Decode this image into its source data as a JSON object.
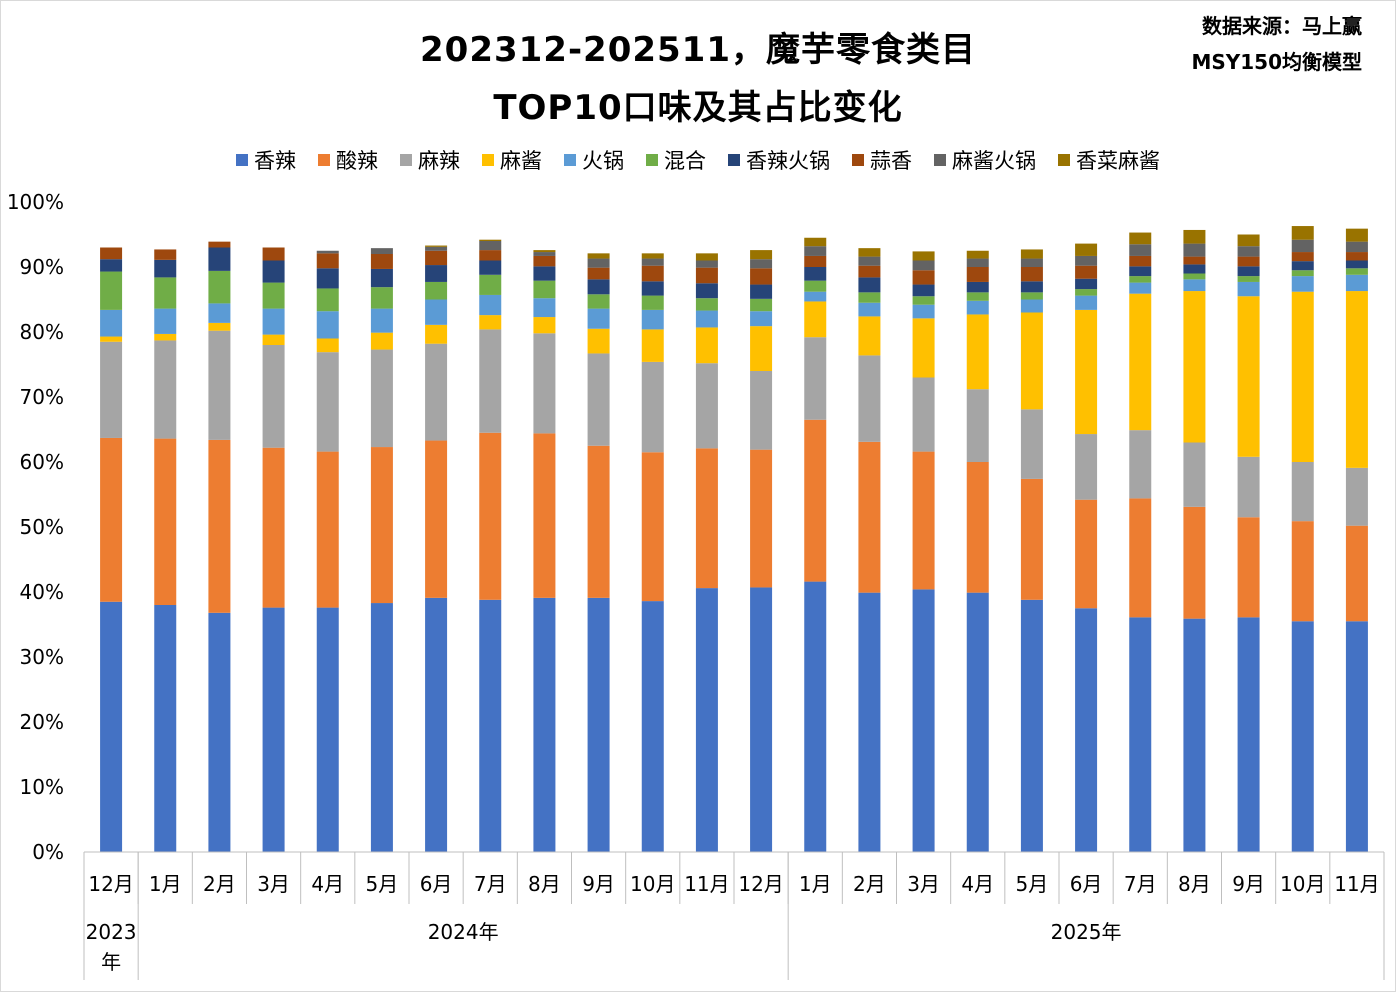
{
  "title_line1": "202312-202511，魔芋零食类目",
  "title_line2": "TOP10口味及其占比变化",
  "source_line1": "数据来源：马上赢",
  "source_line2": "MSY150均衡模型",
  "chart_data": {
    "type": "bar",
    "stacked": true,
    "title": "202312-202511，魔芋零食类目 TOP10口味及其占比变化",
    "ylim": [
      0,
      1
    ],
    "ytick_labels": [
      "0%",
      "10%",
      "20%",
      "30%",
      "40%",
      "50%",
      "60%",
      "70%",
      "80%",
      "90%",
      "100%"
    ],
    "categories": [
      "12月",
      "1月",
      "2月",
      "3月",
      "4月",
      "5月",
      "6月",
      "7月",
      "8月",
      "9月",
      "10月",
      "11月",
      "12月",
      "1月",
      "2月",
      "3月",
      "4月",
      "5月",
      "6月",
      "7月",
      "8月",
      "9月",
      "10月",
      "11月"
    ],
    "year_groups": [
      {
        "label": "2023年",
        "count": 1
      },
      {
        "label": "2024年",
        "count": 12
      },
      {
        "label": "2025年",
        "count": 11
      }
    ],
    "legend_position": "top",
    "series": [
      {
        "name": "香辣",
        "color": "#4472C4",
        "values": [
          0.385,
          0.38,
          0.368,
          0.376,
          0.376,
          0.383,
          0.391,
          0.388,
          0.391,
          0.391,
          0.386,
          0.406,
          0.407,
          0.416,
          0.399,
          0.404,
          0.399,
          0.388,
          0.375,
          0.361,
          0.359,
          0.361,
          0.355,
          0.355
        ]
      },
      {
        "name": "酸辣",
        "color": "#ED7D31",
        "values": [
          0.252,
          0.256,
          0.266,
          0.246,
          0.24,
          0.24,
          0.242,
          0.257,
          0.253,
          0.234,
          0.229,
          0.215,
          0.212,
          0.249,
          0.232,
          0.212,
          0.201,
          0.186,
          0.167,
          0.183,
          0.172,
          0.154,
          0.154,
          0.147
        ]
      },
      {
        "name": "麻辣",
        "color": "#A5A5A5",
        "values": [
          0.148,
          0.151,
          0.168,
          0.158,
          0.153,
          0.15,
          0.149,
          0.159,
          0.154,
          0.142,
          0.139,
          0.131,
          0.121,
          0.127,
          0.133,
          0.114,
          0.112,
          0.107,
          0.101,
          0.105,
          0.099,
          0.093,
          0.091,
          0.089
        ]
      },
      {
        "name": "麻酱",
        "color": "#FFC000",
        "values": [
          0.008,
          0.01,
          0.012,
          0.016,
          0.021,
          0.026,
          0.029,
          0.022,
          0.025,
          0.038,
          0.05,
          0.055,
          0.069,
          0.055,
          0.06,
          0.091,
          0.115,
          0.149,
          0.191,
          0.21,
          0.233,
          0.247,
          0.262,
          0.272
        ]
      },
      {
        "name": "火锅",
        "color": "#5B9BD5",
        "values": [
          0.041,
          0.039,
          0.03,
          0.04,
          0.042,
          0.037,
          0.039,
          0.031,
          0.029,
          0.031,
          0.03,
          0.026,
          0.023,
          0.015,
          0.021,
          0.021,
          0.021,
          0.02,
          0.022,
          0.017,
          0.018,
          0.022,
          0.024,
          0.025
        ]
      },
      {
        "name": "混合",
        "color": "#70AD47",
        "values": [
          0.059,
          0.048,
          0.05,
          0.04,
          0.035,
          0.033,
          0.027,
          0.031,
          0.027,
          0.022,
          0.022,
          0.019,
          0.019,
          0.017,
          0.016,
          0.013,
          0.013,
          0.011,
          0.01,
          0.01,
          0.009,
          0.009,
          0.009,
          0.01
        ]
      },
      {
        "name": "香辣火锅",
        "color": "#264478",
        "values": [
          0.019,
          0.027,
          0.036,
          0.034,
          0.031,
          0.028,
          0.026,
          0.022,
          0.022,
          0.023,
          0.022,
          0.023,
          0.022,
          0.021,
          0.023,
          0.018,
          0.016,
          0.017,
          0.016,
          0.015,
          0.014,
          0.015,
          0.014,
          0.012
        ]
      },
      {
        "name": "蒜香",
        "color": "#9E480E",
        "values": [
          0.018,
          0.016,
          0.009,
          0.02,
          0.023,
          0.023,
          0.022,
          0.016,
          0.016,
          0.018,
          0.024,
          0.024,
          0.025,
          0.017,
          0.018,
          0.022,
          0.023,
          0.022,
          0.02,
          0.016,
          0.012,
          0.015,
          0.014,
          0.013
        ]
      },
      {
        "name": "麻酱火锅",
        "color": "#636363",
        "values": [
          0.0,
          0.0,
          0.0,
          0.0,
          0.004,
          0.009,
          0.006,
          0.014,
          0.006,
          0.014,
          0.011,
          0.011,
          0.014,
          0.015,
          0.014,
          0.015,
          0.013,
          0.013,
          0.015,
          0.018,
          0.02,
          0.016,
          0.019,
          0.016
        ]
      },
      {
        "name": "香菜麻酱",
        "color": "#997300",
        "values": [
          0.0,
          0.0,
          0.0,
          0.0,
          0.0,
          0.0,
          0.002,
          0.002,
          0.003,
          0.008,
          0.008,
          0.011,
          0.014,
          0.013,
          0.013,
          0.014,
          0.012,
          0.014,
          0.019,
          0.018,
          0.021,
          0.018,
          0.021,
          0.02
        ]
      }
    ]
  }
}
